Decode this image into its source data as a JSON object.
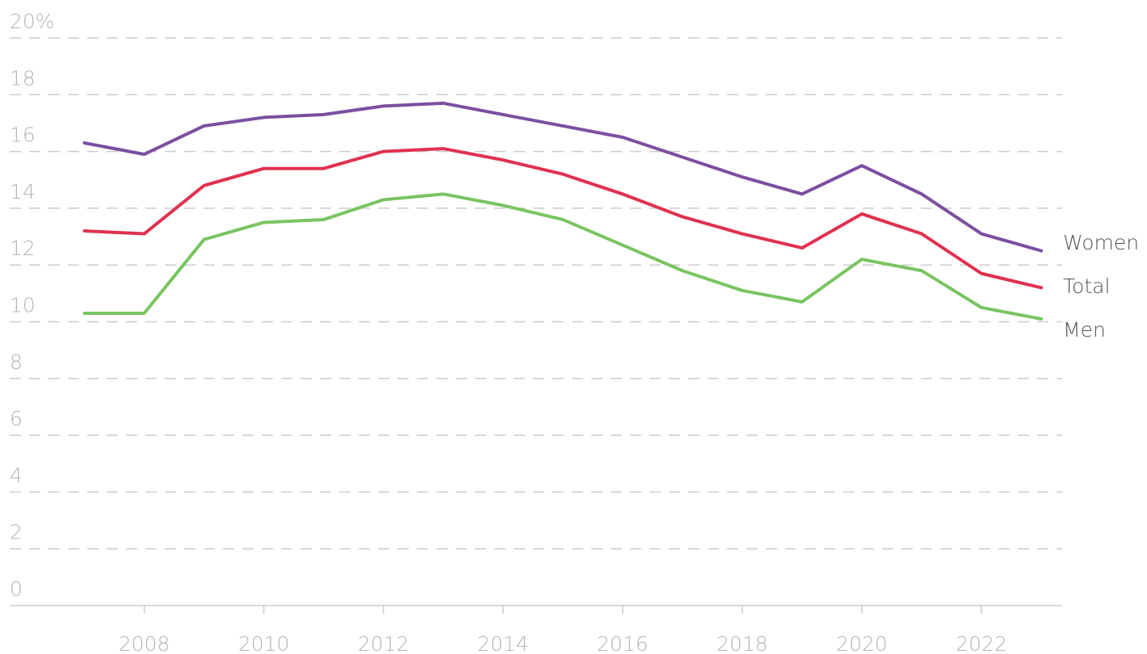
{
  "chart_data": {
    "type": "line",
    "x": [
      2007,
      2008,
      2009,
      2010,
      2011,
      2012,
      2013,
      2014,
      2015,
      2016,
      2017,
      2018,
      2019,
      2020,
      2021,
      2022,
      2023
    ],
    "series": [
      {
        "name": "Women",
        "color": "#7b4fa0",
        "values": [
          16.3,
          15.9,
          16.9,
          17.2,
          17.3,
          17.6,
          17.7,
          17.3,
          16.9,
          16.5,
          15.8,
          15.1,
          14.5,
          15.5,
          14.5,
          13.1,
          12.5
        ]
      },
      {
        "name": "Total",
        "color": "#e0314f",
        "values": [
          13.2,
          13.1,
          14.8,
          15.4,
          15.4,
          16.0,
          16.1,
          15.7,
          15.2,
          14.5,
          13.7,
          13.1,
          12.6,
          13.8,
          13.1,
          11.7,
          11.2
        ]
      },
      {
        "name": "Men",
        "color": "#7ac462",
        "values": [
          10.3,
          10.3,
          12.9,
          13.5,
          13.6,
          14.3,
          14.5,
          14.1,
          13.6,
          12.7,
          11.8,
          11.1,
          10.7,
          12.2,
          11.8,
          10.5,
          10.1
        ]
      }
    ],
    "xlim": [
      2005.75,
      2023.35
    ],
    "xticks": [
      2008,
      2010,
      2012,
      2014,
      2016,
      2018,
      2020,
      2022
    ],
    "ylim": [
      0,
      20
    ],
    "yticks": [
      0,
      2,
      4,
      6,
      8,
      10,
      12,
      14,
      16,
      18,
      {
        "value": 20,
        "label": "20%"
      }
    ],
    "grid": true
  }
}
